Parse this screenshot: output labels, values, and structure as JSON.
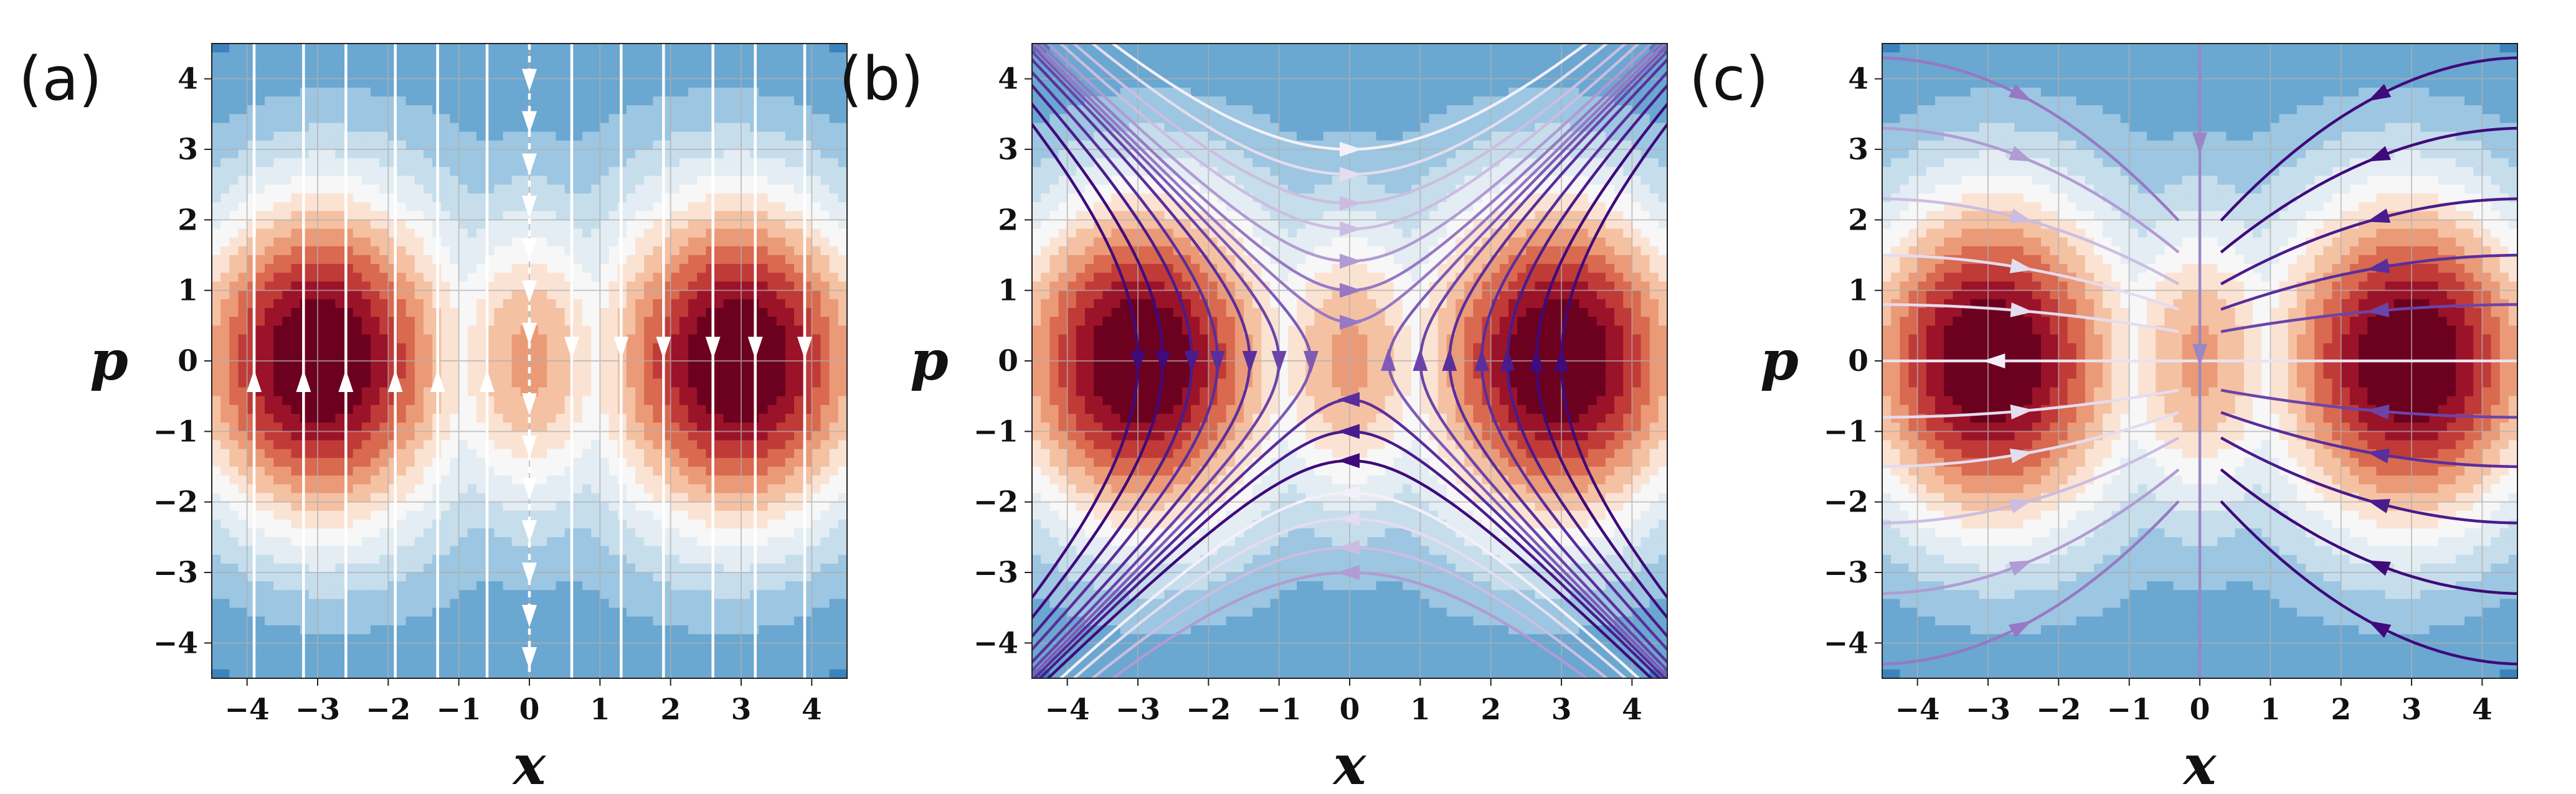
{
  "chart_data": [
    {
      "type": "contour",
      "panel_label": "(a)",
      "xlabel": "x",
      "ylabel": "p",
      "xlim": [
        -4.5,
        4.5
      ],
      "ylim": [
        -4.5,
        4.5
      ],
      "x_ticks": [
        -4,
        -3,
        -2,
        -1,
        0,
        1,
        2,
        3,
        4
      ],
      "y_ticks": [
        -4,
        -3,
        -2,
        -1,
        0,
        1,
        2,
        3,
        4
      ],
      "grid": true,
      "colormap": "RdBu",
      "overlay": "vertical streamlines (flow along p only)",
      "arrows": [
        {
          "x": -3.9,
          "p": -0.3,
          "direction": "up"
        },
        {
          "x": -3.2,
          "p": -0.3,
          "direction": "up"
        },
        {
          "x": -2.6,
          "p": -0.3,
          "direction": "up"
        },
        {
          "x": -1.9,
          "p": -0.3,
          "direction": "up"
        },
        {
          "x": -1.3,
          "p": -0.3,
          "direction": "up"
        },
        {
          "x": -0.6,
          "p": -0.3,
          "direction": "up"
        },
        {
          "x": 0.6,
          "p": 0.2,
          "direction": "down"
        },
        {
          "x": 1.3,
          "p": 0.2,
          "direction": "down"
        },
        {
          "x": 1.9,
          "p": 0.2,
          "direction": "down"
        },
        {
          "x": 2.6,
          "p": 0.2,
          "direction": "down"
        },
        {
          "x": 3.2,
          "p": 0.2,
          "direction": "down"
        },
        {
          "x": 3.9,
          "p": 0.2,
          "direction": "down"
        },
        {
          "x": 0,
          "p": 4.0,
          "direction": "down"
        },
        {
          "x": 0,
          "p": 3.4,
          "direction": "down"
        },
        {
          "x": 0,
          "p": 2.8,
          "direction": "down"
        },
        {
          "x": 0,
          "p": 2.2,
          "direction": "down"
        },
        {
          "x": 0,
          "p": 1.6,
          "direction": "down"
        },
        {
          "x": 0,
          "p": 1.0,
          "direction": "down"
        },
        {
          "x": 0,
          "p": 0.4,
          "direction": "down"
        },
        {
          "x": 0,
          "p": -0.6,
          "direction": "down"
        },
        {
          "x": 0,
          "p": -1.2,
          "direction": "down"
        },
        {
          "x": 0,
          "p": -1.8,
          "direction": "down"
        },
        {
          "x": 0,
          "p": -2.4,
          "direction": "down"
        },
        {
          "x": 0,
          "p": -3.0,
          "direction": "down"
        },
        {
          "x": 0,
          "p": -3.6,
          "direction": "down"
        },
        {
          "x": 0,
          "p": -4.2,
          "direction": "down"
        }
      ]
    },
    {
      "type": "contour",
      "panel_label": "(b)",
      "xlabel": "x",
      "ylabel": "p",
      "xlim": [
        -4.5,
        4.5
      ],
      "ylim": [
        -4.5,
        4.5
      ],
      "x_ticks": [
        -4,
        -3,
        -2,
        -1,
        0,
        1,
        2,
        3,
        4
      ],
      "y_ticks": [
        -4,
        -3,
        -2,
        -1,
        0,
        1,
        2,
        3,
        4
      ],
      "grid": true,
      "colormap": "RdBu",
      "overlay": "hyperbolic streamlines around saddle at origin, coloured purple (top) to white (bottom)"
    },
    {
      "type": "contour",
      "panel_label": "(c)",
      "xlabel": "x",
      "ylabel": "p",
      "xlim": [
        -4.5,
        4.5
      ],
      "ylim": [
        -4.5,
        4.5
      ],
      "x_ticks": [
        -4,
        -3,
        -2,
        -1,
        0,
        1,
        2,
        3,
        4
      ],
      "y_ticks": [
        -4,
        -3,
        -2,
        -1,
        0,
        1,
        2,
        3,
        4
      ],
      "grid": true,
      "colormap": "RdBu",
      "overlay": "streamlines converging toward x = 0, coloured white (left) to purple (right)"
    }
  ]
}
